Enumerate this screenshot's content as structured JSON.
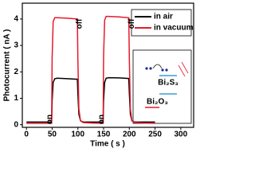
{
  "chart_data": {
    "type": "line",
    "x_label": "Time ( s )",
    "y_label": "Photocurrent ( nA )",
    "x": [
      0,
      49,
      50,
      52,
      55,
      60,
      80,
      99,
      100,
      102,
      105,
      110,
      130,
      149,
      150,
      152,
      155,
      160,
      180,
      199,
      200,
      202,
      205,
      210,
      230,
      250
    ],
    "series": [
      {
        "name": "in air",
        "color": "#000000",
        "values": [
          0.1,
          0.1,
          0.9,
          1.6,
          1.74,
          1.76,
          1.74,
          1.72,
          1.2,
          0.4,
          0.15,
          0.1,
          0.1,
          0.1,
          0.9,
          1.6,
          1.76,
          1.78,
          1.77,
          1.75,
          1.2,
          0.4,
          0.15,
          0.1,
          0.1,
          0.1
        ]
      },
      {
        "name": "in vacuum",
        "color": "#e8192c",
        "values": [
          0.05,
          0.05,
          2.5,
          3.9,
          4.05,
          4.05,
          4.03,
          4.0,
          2.5,
          0.6,
          0.15,
          0.08,
          0.06,
          0.05,
          2.6,
          3.95,
          4.1,
          4.1,
          4.08,
          4.05,
          2.5,
          0.6,
          0.15,
          0.08,
          0.06,
          0.05
        ]
      }
    ],
    "xlim": [
      -8,
      325
    ],
    "xticks": [
      0,
      50,
      100,
      150,
      200,
      250,
      300
    ],
    "ylim": [
      -0.1,
      4.6
    ],
    "yticks": [
      0,
      1,
      2,
      3,
      4
    ],
    "annotations": [
      "on",
      "off",
      "on",
      "off"
    ],
    "legend": "top-right",
    "inset_labels": [
      "Bi₂S₃",
      "Bi₂O₃"
    ]
  }
}
